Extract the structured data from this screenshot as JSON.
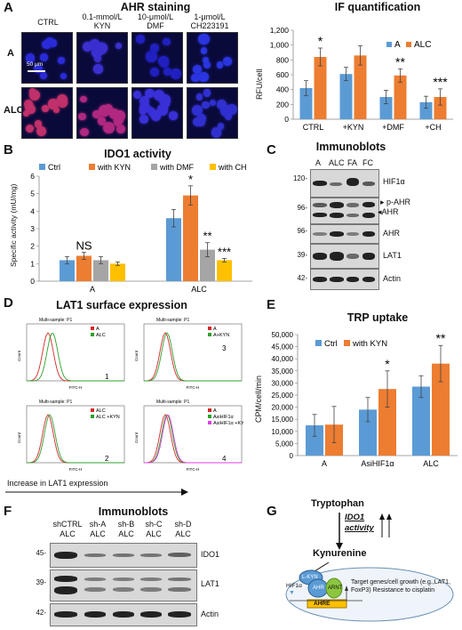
{
  "panelA": {
    "letter": "A",
    "title": "AHR staining",
    "col_labels": [
      "CTRL",
      "0.1-mmol/L KYN",
      "10-μmol/L DMF",
      "1-μmol/L CH223191"
    ],
    "row_labels": [
      "A",
      "ALC"
    ],
    "scale_bar": "50 μm"
  },
  "panelIF": {
    "title": "IF quantification",
    "ylabel": "RFU/cell",
    "legend": [
      "A",
      "ALC"
    ],
    "sig": [
      "*",
      "**",
      "***"
    ],
    "colors": {
      "A": "#5b9bd5",
      "ALC": "#ed7d31"
    }
  },
  "panelB": {
    "letter": "B",
    "title": "IDO1 activity",
    "ylabel": "Specific activity (mU/mg)",
    "legend": [
      "Ctrl",
      "with KYN",
      "with DMF",
      "with CH"
    ],
    "sig": [
      "NS",
      "*",
      "**",
      "***"
    ],
    "colors": [
      "#5b9bd5",
      "#ed7d31",
      "#a5a5a5",
      "#ffc000"
    ]
  },
  "panelC": {
    "letter": "C",
    "title": "Immunoblots",
    "lanes": [
      "A",
      "ALC",
      "FA",
      "FC"
    ],
    "mw": [
      "120-",
      "96-",
      "96-",
      "39-",
      "42-"
    ],
    "labels": [
      "HIF1α",
      "p-AHR",
      "AHR",
      "AHR",
      "LAT1",
      "Actin"
    ]
  },
  "panelD": {
    "letter": "D",
    "title": "LAT1 surface expression",
    "subplot_title": "Multi-sample: P1",
    "xaxis": "FITC-H",
    "yaxis": "Count",
    "legends": [
      [
        "A",
        "ALC"
      ],
      [
        "A",
        "A+KYN"
      ],
      [
        "ALC",
        "ALC +KYN"
      ],
      [
        "A",
        "AsiHIF1α",
        "AsiHIF1α +KYN"
      ]
    ],
    "numbers": [
      "1",
      "3",
      "2",
      "4"
    ],
    "arrow_label": "Increase in LAT1 expression"
  },
  "panelE": {
    "letter": "E",
    "title": "TRP uptake",
    "ylabel": "CPM/cell/min",
    "legend": [
      "Ctrl",
      "with KYN"
    ],
    "sig": [
      "*",
      "**"
    ],
    "colors": [
      "#5b9bd5",
      "#ed7d31"
    ]
  },
  "panelF": {
    "letter": "F",
    "title": "Immunoblots",
    "lanes": [
      [
        "shCTRL",
        "ALC"
      ],
      [
        "sh-A",
        "ALC"
      ],
      [
        "sh-B",
        "ALC"
      ],
      [
        "sh-C",
        "ALC"
      ],
      [
        "sh-D",
        "ALC"
      ]
    ],
    "mw": [
      "45-",
      "39-",
      "42-"
    ],
    "labels": [
      "IDO1",
      "LAT1",
      "Actin"
    ]
  },
  "panelG": {
    "letter": "G",
    "tryptophan": "Tryptophan",
    "activity": "IDO1 activity",
    "kynurenine": "Kynurenine",
    "hif": "HIF1α",
    "proteins": [
      "L-KYN",
      "AHR",
      "ARNT"
    ],
    "ahre": "AHRE",
    "target": "Target genes/cell growth (e.g.,LAT1, FoxP3) Resistance to cisplatin"
  },
  "chart_data": [
    {
      "type": "bar",
      "title": "IF quantification",
      "ylabel": "RFU/cell",
      "categories": [
        "CTRL",
        "+KYN",
        "+DMF",
        "+CH"
      ],
      "ylim": [
        0,
        1200
      ],
      "yticks": [
        "0",
        "200",
        "400",
        "600",
        "800",
        "1,000",
        "1,200"
      ],
      "series": [
        {
          "name": "A",
          "values": [
            420,
            610,
            300,
            230
          ],
          "errors": [
            100,
            90,
            90,
            80
          ]
        },
        {
          "name": "ALC",
          "values": [
            840,
            860,
            590,
            300
          ],
          "errors": [
            120,
            130,
            90,
            110
          ]
        }
      ]
    },
    {
      "type": "bar",
      "title": "IDO1 activity",
      "ylabel": "Specific activity (mU/mg)",
      "categories": [
        "A",
        "ALC"
      ],
      "ylim": [
        0,
        6
      ],
      "yticks": [
        "0",
        "1",
        "2",
        "3",
        "4",
        "5",
        "6"
      ],
      "series": [
        {
          "name": "Ctrl",
          "values": [
            1.2,
            3.6
          ],
          "errors": [
            0.2,
            0.5
          ]
        },
        {
          "name": "with KYN",
          "values": [
            1.45,
            4.9
          ],
          "errors": [
            0.2,
            0.55
          ]
        },
        {
          "name": "with DMF",
          "values": [
            1.2,
            1.8
          ],
          "errors": [
            0.2,
            0.4
          ]
        },
        {
          "name": "with CH",
          "values": [
            1.0,
            1.2
          ],
          "errors": [
            0.1,
            0.1
          ]
        }
      ]
    },
    {
      "type": "bar",
      "title": "TRP uptake",
      "ylabel": "CPM/cell/min",
      "categories": [
        "A",
        "AsiHIF1α",
        "ALC"
      ],
      "ylim": [
        0,
        50000
      ],
      "yticks": [
        "0",
        "5,000",
        "10,000",
        "15,000",
        "20,000",
        "25,000",
        "30,000",
        "35,000",
        "40,000",
        "45,000",
        "50,000"
      ],
      "series": [
        {
          "name": "Ctrl",
          "values": [
            12500,
            19000,
            28500
          ],
          "errors": [
            4500,
            5000,
            4500
          ]
        },
        {
          "name": "with KYN",
          "values": [
            12800,
            27500,
            38000
          ],
          "errors": [
            7500,
            7500,
            7500
          ]
        }
      ]
    }
  ]
}
